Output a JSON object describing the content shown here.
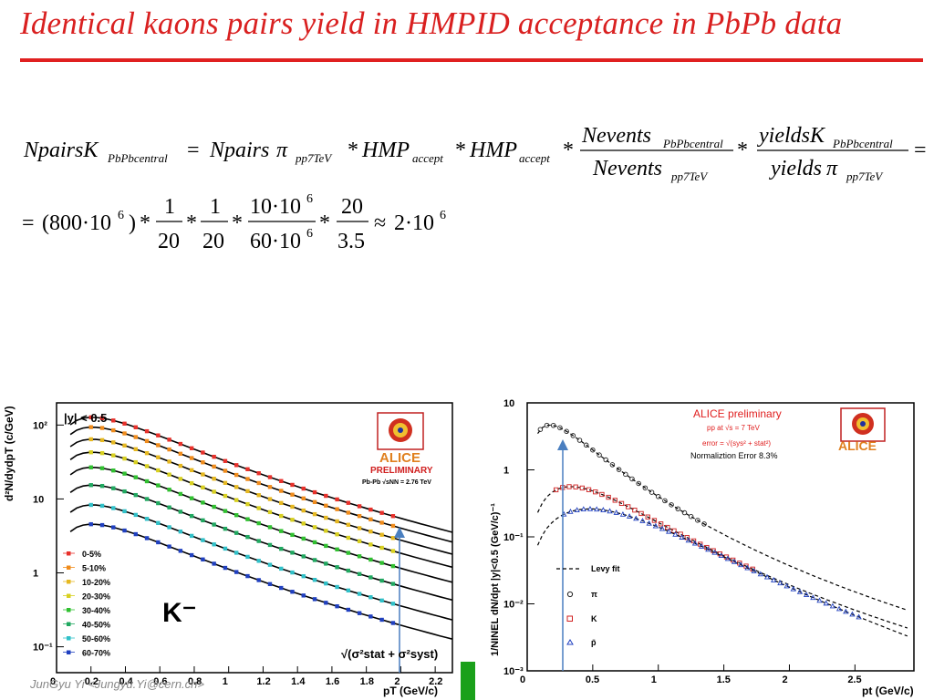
{
  "slide": {
    "title": "Identical kaons pairs yield in HMPID acceptance in PbPb data",
    "footer": "JunGyu Yi <Jungyu.Yi@cern.ch>",
    "colors": {
      "title": "#d92020",
      "rule": "#e02020",
      "accent_green": "#1aa01a"
    }
  },
  "equation1": {
    "lhs": "NpairsK",
    "lhs_sub": "PbPbcentral",
    "t1": "Npairs",
    "t1_pi": "π",
    "t1_sub": "pp7TeV",
    "hmp": "HMP",
    "hmp_sub": "accept",
    "frac1_num": "Nevents",
    "frac1_num_sub": "PbPbcentral",
    "frac1_den": "Nevents",
    "frac1_den_sub": "pp7TeV",
    "frac2_num": "yieldsK",
    "frac2_num_sub": "PbPbcentral",
    "frac2_den": "yields",
    "frac2_den_pi": "π",
    "frac2_den_sub": "pp7TeV",
    "eq": "=",
    "star": "*"
  },
  "equation2": {
    "eq": "=",
    "paren_open": "(800·10",
    "exp6": "6",
    "paren_close": ")",
    "f1_num": "1",
    "f1_den": "20",
    "f2_num": "1",
    "f2_den": "20",
    "f3_num": "10·10",
    "f3_num_exp": "6",
    "f3_den": "60·10",
    "f3_den_exp": "6",
    "f4_num": "20",
    "f4_den": "3.5",
    "approx": "≈",
    "result": "2·10",
    "result_exp": "6"
  },
  "left_plot": {
    "y_label": "d²N/dydpT (c/GeV)",
    "y_ticks": [
      "10²",
      "10",
      "1",
      "10⁻¹"
    ],
    "x_ticks": [
      "0",
      "0.2",
      "0.4",
      "0.6",
      "0.8",
      "1",
      "1.2",
      "1.4",
      "1.6",
      "1.8",
      "2",
      "2.2"
    ],
    "x_label": "pT (GeV/c)",
    "rapidity": "|y| < 0.5",
    "particle": "K⁻",
    "logo_text": "ALICE",
    "preliminary": "PRELIMINARY",
    "system": "Pb-Pb √sNN = 2.76 TeV",
    "error_text": "√(σ²stat + σ²syst)",
    "legend": [
      "0-5%",
      "5-10%",
      "10-20%",
      "20-30%",
      "30-40%",
      "40-50%",
      "50-60%",
      "60-70%"
    ],
    "legend_colors": [
      "#e8312b",
      "#f08c1c",
      "#e6b820",
      "#d8d020",
      "#30c030",
      "#20a860",
      "#30c0c8",
      "#2040c0"
    ]
  },
  "right_plot": {
    "y_label": "1/NINEL dN/dpt |y|<0.5 (GeV/c)⁻¹",
    "y_ticks": [
      "10",
      "1",
      "10⁻¹",
      "10⁻²",
      "10⁻³"
    ],
    "x_ticks": [
      "0",
      "0.5",
      "1",
      "1.5",
      "2",
      "2.5"
    ],
    "x_label": "pt (GeV/c)",
    "preliminary": "ALICE preliminary",
    "system": "pp at √s = 7 TeV",
    "error": "error = √(sys² + stat²)",
    "norm_error": "Normaliztion Error 8.3%",
    "logo_text": "ALICE",
    "legend": [
      "Levy fit",
      "π",
      "K",
      "p̄"
    ],
    "series_colors": {
      "pi": "#222222",
      "K": "#d02020",
      "p": "#2040c0"
    }
  }
}
